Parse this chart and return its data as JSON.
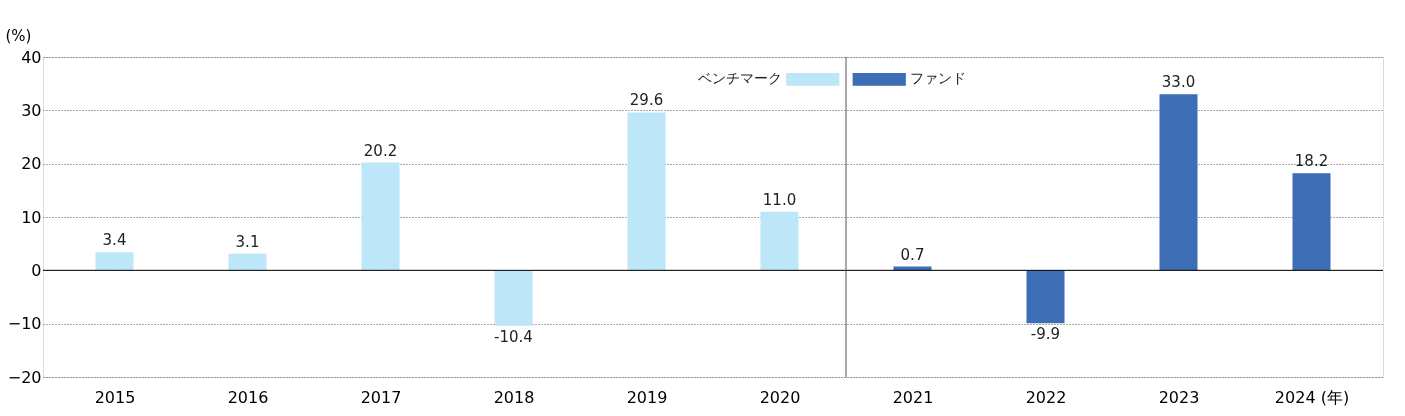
{
  "chart_data": {
    "type": "bar",
    "ylabel": "(%)",
    "x": [
      2015,
      2016,
      2017,
      2018,
      2019,
      2020,
      2021,
      2022,
      2023,
      2024
    ],
    "series": [
      {
        "name": "ベンチマーク",
        "color": "#bde6f8",
        "values": [
          3.4,
          3.1,
          20.2,
          -10.4,
          29.6,
          11.0,
          null,
          null,
          null,
          null
        ],
        "value_labels": [
          "3.4",
          "3.1",
          "20.2",
          "-10.4",
          "29.6",
          "11.0",
          null,
          null,
          null,
          null
        ]
      },
      {
        "name": "ファンド",
        "color": "#3c6db5",
        "values": [
          null,
          null,
          null,
          null,
          null,
          null,
          0.7,
          -9.9,
          33.0,
          18.2
        ],
        "value_labels": [
          null,
          null,
          null,
          null,
          null,
          null,
          "0.7",
          "-9.9",
          "33.0",
          "18.2"
        ]
      }
    ],
    "xlim": [
      2014.5,
      2024.5
    ],
    "xticks": [
      2015,
      2016,
      2017,
      2018,
      2019,
      2020,
      2021,
      2022,
      2023,
      {
        "value": 2024,
        "label": "2024 (年)"
      }
    ],
    "ylim": [
      -20,
      40
    ],
    "yticks": [
      -20,
      -10,
      0,
      10,
      20,
      30,
      40
    ],
    "grid": "y",
    "legend": "top",
    "ref_lines": [
      {
        "axis": "y",
        "value": 0,
        "line_style": "solid",
        "color": "#000000"
      },
      {
        "axis": "x",
        "value": 2020.5,
        "line_style": "solid",
        "color": "#555555"
      }
    ]
  }
}
